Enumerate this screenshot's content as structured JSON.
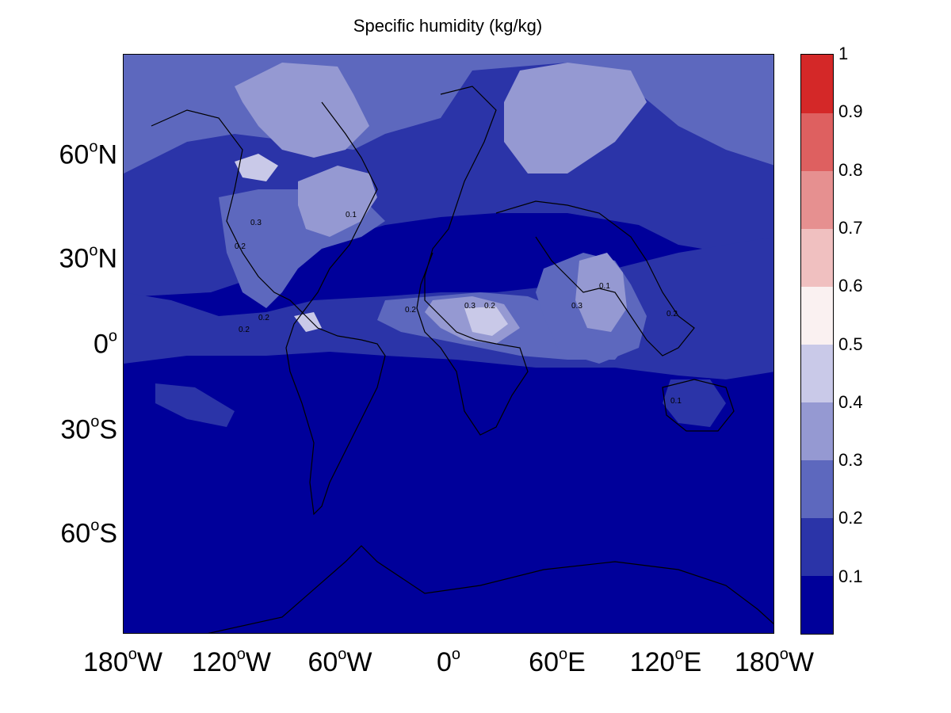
{
  "title": "Specific humidity (kg/kg)",
  "colors": {
    "bands": [
      "#00009a",
      "#2b34a8",
      "#5d68be",
      "#9599d2",
      "#c9c9e8",
      "#faf1f1",
      "#f0c0c0",
      "#e69090",
      "#de6060",
      "#d42828"
    ],
    "coastline": "#000000"
  },
  "y_axis": {
    "ticks": [
      {
        "num": "60",
        "deg": "o",
        "hem": "N",
        "lat": 60
      },
      {
        "num": "30",
        "deg": "o",
        "hem": "N",
        "lat": 30
      },
      {
        "num": "0",
        "deg": "o",
        "hem": "",
        "lat": 0
      },
      {
        "num": "30",
        "deg": "o",
        "hem": "S",
        "lat": -30
      },
      {
        "num": "60",
        "deg": "o",
        "hem": "S",
        "lat": -60
      }
    ]
  },
  "x_axis": {
    "ticks": [
      {
        "num": "180",
        "deg": "o",
        "hem": "W",
        "lon": -180
      },
      {
        "num": "120",
        "deg": "o",
        "hem": "W",
        "lon": -120
      },
      {
        "num": "60",
        "deg": "o",
        "hem": "W",
        "lon": -60
      },
      {
        "num": "0",
        "deg": "o",
        "hem": "",
        "lon": 0
      },
      {
        "num": "60",
        "deg": "o",
        "hem": "E",
        "lon": 60
      },
      {
        "num": "120",
        "deg": "o",
        "hem": "E",
        "lon": 120
      },
      {
        "num": "180",
        "deg": "o",
        "hem": "W",
        "lon": 180
      }
    ]
  },
  "colorbar": {
    "ticks": [
      "0.1",
      "0.2",
      "0.3",
      "0.4",
      "0.5",
      "0.6",
      "0.7",
      "0.8",
      "0.9",
      "1"
    ],
    "range": [
      0,
      1
    ]
  },
  "contour_labels": [
    "0.2",
    "0.3",
    "0.1",
    "0.2",
    "0.3",
    "0.2",
    "0.2",
    "0.3",
    "0.1",
    "0.2",
    "0.1",
    "0.2"
  ],
  "map": {
    "projection": "miller",
    "lon_range": [
      -180,
      180
    ],
    "lat_range": [
      -80,
      80
    ]
  }
}
